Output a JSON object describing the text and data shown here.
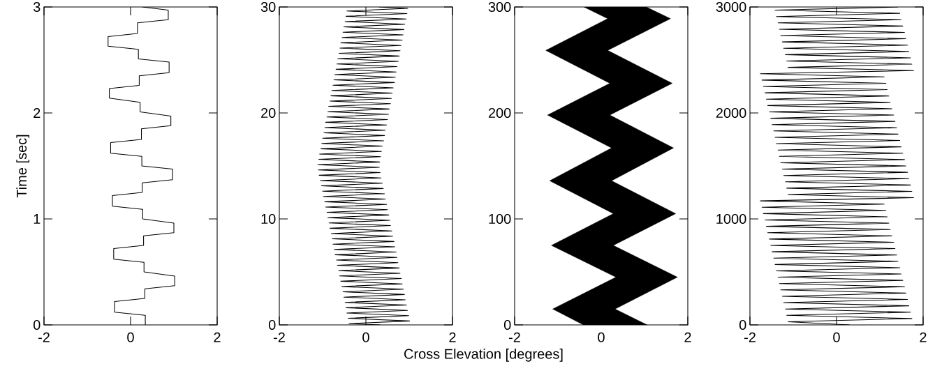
{
  "chart_data": [
    {
      "type": "line",
      "ylabel": "Time [sec]",
      "xlim": [
        -2,
        2
      ],
      "ylim": [
        0,
        3
      ],
      "xticks": [
        -2,
        0,
        2
      ],
      "yticks": [
        0,
        1,
        2,
        3
      ],
      "series": [
        {
          "color": "#000000",
          "x": [
            0.34,
            0.34,
            -0.37,
            -0.37,
            0.33,
            0.33,
            1.02,
            1.02,
            0.31,
            0.31,
            -0.39,
            -0.39,
            0.3,
            0.3,
            1.0,
            1.0,
            0.28,
            0.28,
            -0.42,
            -0.42,
            0.27,
            0.27,
            0.97,
            0.97,
            0.26,
            0.26,
            -0.46,
            -0.46,
            0.25,
            0.25,
            0.93,
            0.93,
            0.22,
            0.22,
            -0.49,
            -0.49,
            0.2,
            0.2,
            0.89,
            0.89,
            0.18,
            0.18,
            -0.52,
            -0.52,
            0.16,
            0.16,
            0.87,
            0.87,
            0.27
          ],
          "values": [
            0,
            0.09,
            0.12,
            0.22,
            0.25,
            0.34,
            0.37,
            0.46,
            0.5,
            0.59,
            0.62,
            0.72,
            0.75,
            0.84,
            0.87,
            0.96,
            1.0,
            1.09,
            1.12,
            1.22,
            1.25,
            1.34,
            1.37,
            1.47,
            1.5,
            1.59,
            1.62,
            1.72,
            1.75,
            1.85,
            1.88,
            1.97,
            2.01,
            2.1,
            2.14,
            2.23,
            2.26,
            2.35,
            2.38,
            2.48,
            2.51,
            2.6,
            2.63,
            2.72,
            2.75,
            2.85,
            2.88,
            2.97,
            3.0
          ]
        }
      ]
    },
    {
      "type": "line",
      "xlabel": "Cross Elevation [degrees]",
      "xlim": [
        -2,
        2
      ],
      "ylim": [
        0,
        30
      ],
      "xticks": [
        -2,
        0,
        2
      ],
      "yticks": [
        0,
        10,
        20,
        30
      ],
      "series": [
        {
          "color": "#000000",
          "x": [
            0.33,
            -0.39,
            1.01,
            -0.41,
            0.99,
            -0.44,
            0.96,
            -0.46,
            0.94,
            -0.48,
            0.91,
            -0.51,
            0.89,
            -0.53,
            0.87,
            -0.56,
            0.84,
            -0.58,
            0.82,
            -0.61,
            0.79,
            -0.63,
            0.77,
            -0.66,
            0.74,
            -0.68,
            0.72,
            -0.71,
            0.7,
            -0.73,
            0.67,
            -0.76,
            0.65,
            -0.78,
            0.62,
            -0.8,
            0.6,
            -0.83,
            0.57,
            -0.85,
            0.55,
            -0.88,
            0.53,
            -0.9,
            0.5,
            -0.93,
            0.48,
            -0.95,
            0.45,
            -0.98,
            0.43,
            -1.0,
            0.4,
            -1.03,
            0.38,
            -1.05,
            0.35,
            -1.08,
            0.33,
            -1.1,
            0.31,
            -1.11,
            0.32,
            -1.09,
            0.34,
            -1.07,
            0.36,
            -1.04,
            0.38,
            -1.02,
            0.41,
            -1.0,
            0.43,
            -0.97,
            0.45,
            -0.95,
            0.48,
            -0.93,
            0.5,
            -0.9,
            0.52,
            -0.88,
            0.54,
            -0.86,
            0.57,
            -0.83,
            0.59,
            -0.81,
            0.61,
            -0.79,
            0.63,
            -0.76,
            0.66,
            -0.74,
            0.68,
            -0.72,
            0.7,
            -0.69,
            0.72,
            -0.67,
            0.75,
            -0.65,
            0.77,
            -0.62,
            0.79,
            -0.6,
            0.81,
            -0.58,
            0.84,
            -0.55,
            0.86,
            -0.53,
            0.88,
            -0.51,
            0.9,
            -0.48,
            0.93,
            -0.46,
            0.95,
            -0.44,
            0.97,
            0.3
          ],
          "values": [
            0,
            0.12,
            0.37,
            0.62,
            0.87,
            1.12,
            1.37,
            1.62,
            1.87,
            2.12,
            2.37,
            2.62,
            2.87,
            3.12,
            3.37,
            3.62,
            3.87,
            4.12,
            4.37,
            4.62,
            4.87,
            5.12,
            5.37,
            5.62,
            5.87,
            6.12,
            6.37,
            6.62,
            6.87,
            7.12,
            7.37,
            7.62,
            7.87,
            8.12,
            8.37,
            8.62,
            8.87,
            9.12,
            9.37,
            9.62,
            9.87,
            10.12,
            10.37,
            10.62,
            10.87,
            11.12,
            11.37,
            11.62,
            11.87,
            12.12,
            12.37,
            12.62,
            12.87,
            13.12,
            13.37,
            13.62,
            13.87,
            14.12,
            14.37,
            14.62,
            14.87,
            15.12,
            15.37,
            15.62,
            15.87,
            16.12,
            16.37,
            16.62,
            16.87,
            17.12,
            17.37,
            17.62,
            17.87,
            18.12,
            18.37,
            18.62,
            18.87,
            19.12,
            19.37,
            19.62,
            19.87,
            20.12,
            20.37,
            20.62,
            20.87,
            21.12,
            21.37,
            21.62,
            21.87,
            22.12,
            22.37,
            22.62,
            22.87,
            23.12,
            23.37,
            23.62,
            23.87,
            24.12,
            24.37,
            24.62,
            24.87,
            25.12,
            25.37,
            25.62,
            25.87,
            26.12,
            26.37,
            26.62,
            26.87,
            27.12,
            27.37,
            27.62,
            27.87,
            28.12,
            28.37,
            28.62,
            28.87,
            29.12,
            29.37,
            29.62,
            29.87,
            30
          ]
        }
      ]
    },
    {
      "type": "area",
      "xlim": [
        -2,
        2
      ],
      "ylim": [
        0,
        300
      ],
      "xticks": [
        -2,
        0,
        2
      ],
      "yticks": [
        0,
        100,
        200,
        300
      ],
      "series": [
        {
          "color": "#000000",
          "x": [
            -0.41,
            -1.12,
            0.34,
            -1.15,
            0.28,
            -1.19,
            0.24,
            -1.24,
            0.2,
            -1.28,
            0.15,
            -0.4,
            1.04,
            1.6,
            0.15,
            1.64,
            0.2,
            1.67,
            0.24,
            1.72,
            0.28,
            1.76,
            0.32,
            1.06
          ],
          "values": [
            0,
            15,
            45,
            75,
            105,
            136,
            167,
            198,
            228,
            259,
            289,
            300,
            300,
            289,
            259,
            228,
            198,
            167,
            136,
            105,
            75,
            45,
            15,
            0
          ]
        }
      ]
    },
    {
      "type": "line",
      "xlim": [
        -2,
        2
      ],
      "ylim": [
        0,
        3000
      ],
      "xticks": [
        -2,
        0,
        2
      ],
      "yticks": [
        0,
        1000,
        2000,
        3000
      ],
      "series": [
        {
          "color": "#000000",
          "x": [
            0.3,
            -1.12,
            1.74,
            -1.15,
            1.71,
            -1.18,
            1.67,
            -1.22,
            1.64,
            -1.25,
            1.6,
            -1.29,
            1.57,
            -1.32,
            1.53,
            -1.35,
            1.49,
            -1.39,
            1.46,
            -1.42,
            1.42,
            -1.45,
            1.39,
            -1.49,
            1.35,
            -1.52,
            1.32,
            -1.55,
            1.28,
            -1.59,
            1.24,
            -1.62,
            1.21,
            -1.65,
            1.17,
            -1.69,
            1.14,
            -1.72,
            1.1,
            -1.76,
            1.78,
            -1.12,
            1.74,
            -1.15,
            1.71,
            -1.18,
            1.67,
            -1.22,
            1.64,
            -1.25,
            1.6,
            -1.29,
            1.57,
            -1.32,
            1.53,
            -1.35,
            1.49,
            -1.39,
            1.46,
            -1.42,
            1.42,
            -1.45,
            1.39,
            -1.49,
            1.35,
            -1.52,
            1.32,
            -1.55,
            1.28,
            -1.59,
            1.24,
            -1.62,
            1.21,
            -1.65,
            1.17,
            -1.69,
            1.14,
            -1.72,
            1.1,
            -1.76,
            1.78,
            -1.12,
            1.74,
            -1.15,
            1.71,
            -1.18,
            1.67,
            -1.22,
            1.64,
            -1.25,
            1.6,
            -1.29,
            1.57,
            -1.32,
            1.53,
            -1.35,
            1.49,
            -1.39,
            1.46,
            -1.42,
            1.42
          ],
          "values": [
            0,
            30,
            60,
            90,
            120,
            150,
            180,
            210,
            240,
            270,
            300,
            330,
            360,
            390,
            420,
            450,
            480,
            510,
            540,
            570,
            600,
            630,
            660,
            690,
            720,
            750,
            780,
            810,
            840,
            870,
            900,
            930,
            960,
            990,
            1020,
            1050,
            1080,
            1110,
            1140,
            1170,
            1200,
            1230,
            1260,
            1290,
            1320,
            1350,
            1380,
            1410,
            1440,
            1470,
            1500,
            1530,
            1560,
            1590,
            1620,
            1650,
            1680,
            1710,
            1740,
            1770,
            1800,
            1830,
            1860,
            1890,
            1920,
            1950,
            1980,
            2010,
            2040,
            2070,
            2100,
            2130,
            2160,
            2190,
            2220,
            2250,
            2280,
            2310,
            2340,
            2370,
            2400,
            2430,
            2460,
            2490,
            2520,
            2550,
            2580,
            2610,
            2640,
            2670,
            2700,
            2730,
            2760,
            2790,
            2820,
            2850,
            2880,
            2910,
            2940,
            2970,
            3000
          ]
        }
      ]
    }
  ]
}
